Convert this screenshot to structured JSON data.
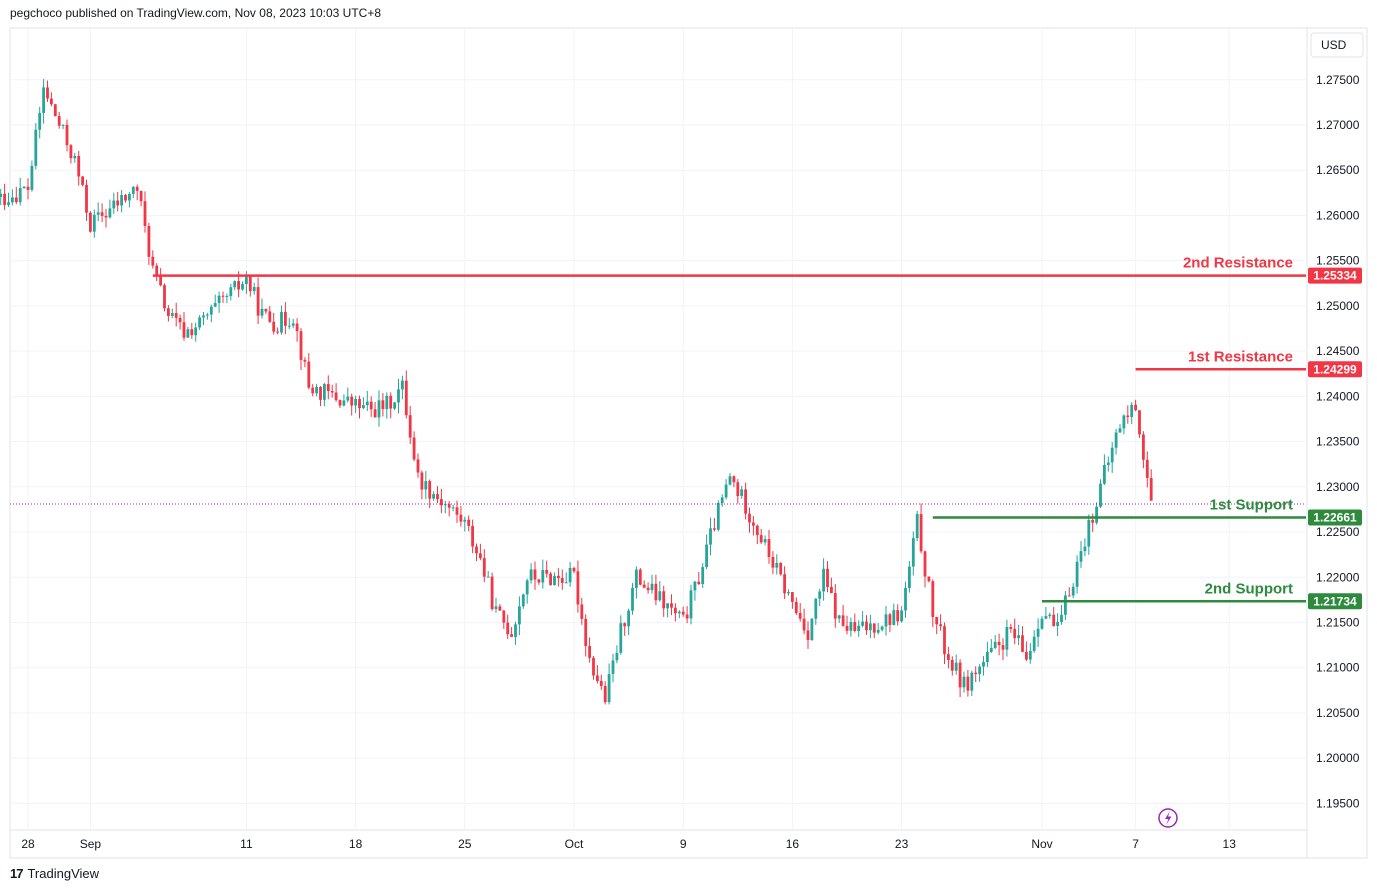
{
  "header": {
    "publisher_line": "pegchoco published on TradingView.com, Nov 08, 2023 10:03 UTC+8"
  },
  "footer": {
    "brand_mark": "17",
    "brand": "TradingView"
  },
  "colors": {
    "up": "#26a69a",
    "down": "#f23645",
    "resistance": "#f23645",
    "support": "#2e8b3e",
    "grid": "#f0f3fa",
    "axis_text": "#131722",
    "current_price_line": "#9c27b0"
  },
  "chart_data": {
    "type": "candlestick",
    "currency": "USD",
    "ylim": [
      1.1925,
      1.2805
    ],
    "y_ticks": [
      "1.27500",
      "1.27000",
      "1.26500",
      "1.26000",
      "1.25500",
      "1.25000",
      "1.24500",
      "1.24000",
      "1.23500",
      "1.23000",
      "1.22500",
      "1.22000",
      "1.21500",
      "1.21000",
      "1.20500",
      "1.20000",
      "1.19500"
    ],
    "x_ticks": [
      {
        "label": "28",
        "date": "2023-08-28"
      },
      {
        "label": "Sep",
        "date": "2023-09-01"
      },
      {
        "label": "11",
        "date": "2023-09-11"
      },
      {
        "label": "18",
        "date": "2023-09-18"
      },
      {
        "label": "25",
        "date": "2023-09-25"
      },
      {
        "label": "Oct",
        "date": "2023-10-02"
      },
      {
        "label": "9",
        "date": "2023-10-09"
      },
      {
        "label": "16",
        "date": "2023-10-16"
      },
      {
        "label": "23",
        "date": "2023-10-23"
      },
      {
        "label": "Nov",
        "date": "2023-11-01"
      },
      {
        "label": "7",
        "date": "2023-11-07"
      },
      {
        "label": "13",
        "date": "2023-11-13"
      }
    ],
    "current_price": 1.2281,
    "levels": [
      {
        "name": "2nd Resistance",
        "value": 1.25334,
        "value_label": "1.25334",
        "kind": "resistance",
        "start_date": "2023-09-05"
      },
      {
        "name": "1st Resistance",
        "value": 1.24299,
        "value_label": "1.24299",
        "kind": "resistance",
        "start_date": "2023-11-07"
      },
      {
        "name": "1st Support",
        "value": 1.22661,
        "value_label": "1.22661",
        "kind": "support",
        "start_date": "2023-10-25"
      },
      {
        "name": "2nd Support",
        "value": 1.21734,
        "value_label": "1.21734",
        "kind": "support",
        "start_date": "2023-11-01"
      }
    ],
    "price_path": [
      [
        "2023-08-24",
        1.259
      ],
      [
        "2023-08-25",
        1.261
      ],
      [
        "2023-08-28",
        1.263
      ],
      [
        "2023-08-29",
        1.274
      ],
      [
        "2023-08-30",
        1.27
      ],
      [
        "2023-08-31",
        1.266
      ],
      [
        "2023-09-01",
        1.259
      ],
      [
        "2023-09-04",
        1.263
      ],
      [
        "2023-09-05",
        1.254
      ],
      [
        "2023-09-06",
        1.249
      ],
      [
        "2023-09-07",
        1.247
      ],
      [
        "2023-09-08",
        1.248
      ],
      [
        "2023-09-11",
        1.253
      ],
      [
        "2023-09-12",
        1.249
      ],
      [
        "2023-09-13",
        1.248
      ],
      [
        "2023-09-14",
        1.249
      ],
      [
        "2023-09-15",
        1.241
      ],
      [
        "2023-09-18",
        1.239
      ],
      [
        "2023-09-19",
        1.2385
      ],
      [
        "2023-09-20",
        1.239
      ],
      [
        "2023-09-21",
        1.241
      ],
      [
        "2023-09-22",
        1.231
      ],
      [
        "2023-09-25",
        1.226
      ],
      [
        "2023-09-26",
        1.222
      ],
      [
        "2023-09-27",
        1.216
      ],
      [
        "2023-09-28",
        1.214
      ],
      [
        "2023-09-29",
        1.22
      ],
      [
        "2023-10-02",
        1.22
      ],
      [
        "2023-10-03",
        1.211
      ],
      [
        "2023-10-04",
        1.2065
      ],
      [
        "2023-10-05",
        1.214
      ],
      [
        "2023-10-06",
        1.22
      ],
      [
        "2023-10-09",
        1.215
      ],
      [
        "2023-10-10",
        1.22
      ],
      [
        "2023-10-11",
        1.226
      ],
      [
        "2023-10-12",
        1.231
      ],
      [
        "2023-10-13",
        1.228
      ],
      [
        "2023-10-16",
        1.217
      ],
      [
        "2023-10-17",
        1.214
      ],
      [
        "2023-10-18",
        1.22
      ],
      [
        "2023-10-19",
        1.215
      ],
      [
        "2023-10-20",
        1.214
      ],
      [
        "2023-10-23",
        1.216
      ],
      [
        "2023-10-24",
        1.226
      ],
      [
        "2023-10-25",
        1.216
      ],
      [
        "2023-10-26",
        1.211
      ],
      [
        "2023-10-27",
        1.208
      ],
      [
        "2023-10-30",
        1.214
      ],
      [
        "2023-10-31",
        1.211
      ],
      [
        "2023-11-01",
        1.2165
      ],
      [
        "2023-11-02",
        1.214
      ],
      [
        "2023-11-03",
        1.22
      ],
      [
        "2023-11-06",
        1.237
      ],
      [
        "2023-11-07",
        1.239
      ],
      [
        "2023-11-08",
        1.2281
      ]
    ]
  }
}
